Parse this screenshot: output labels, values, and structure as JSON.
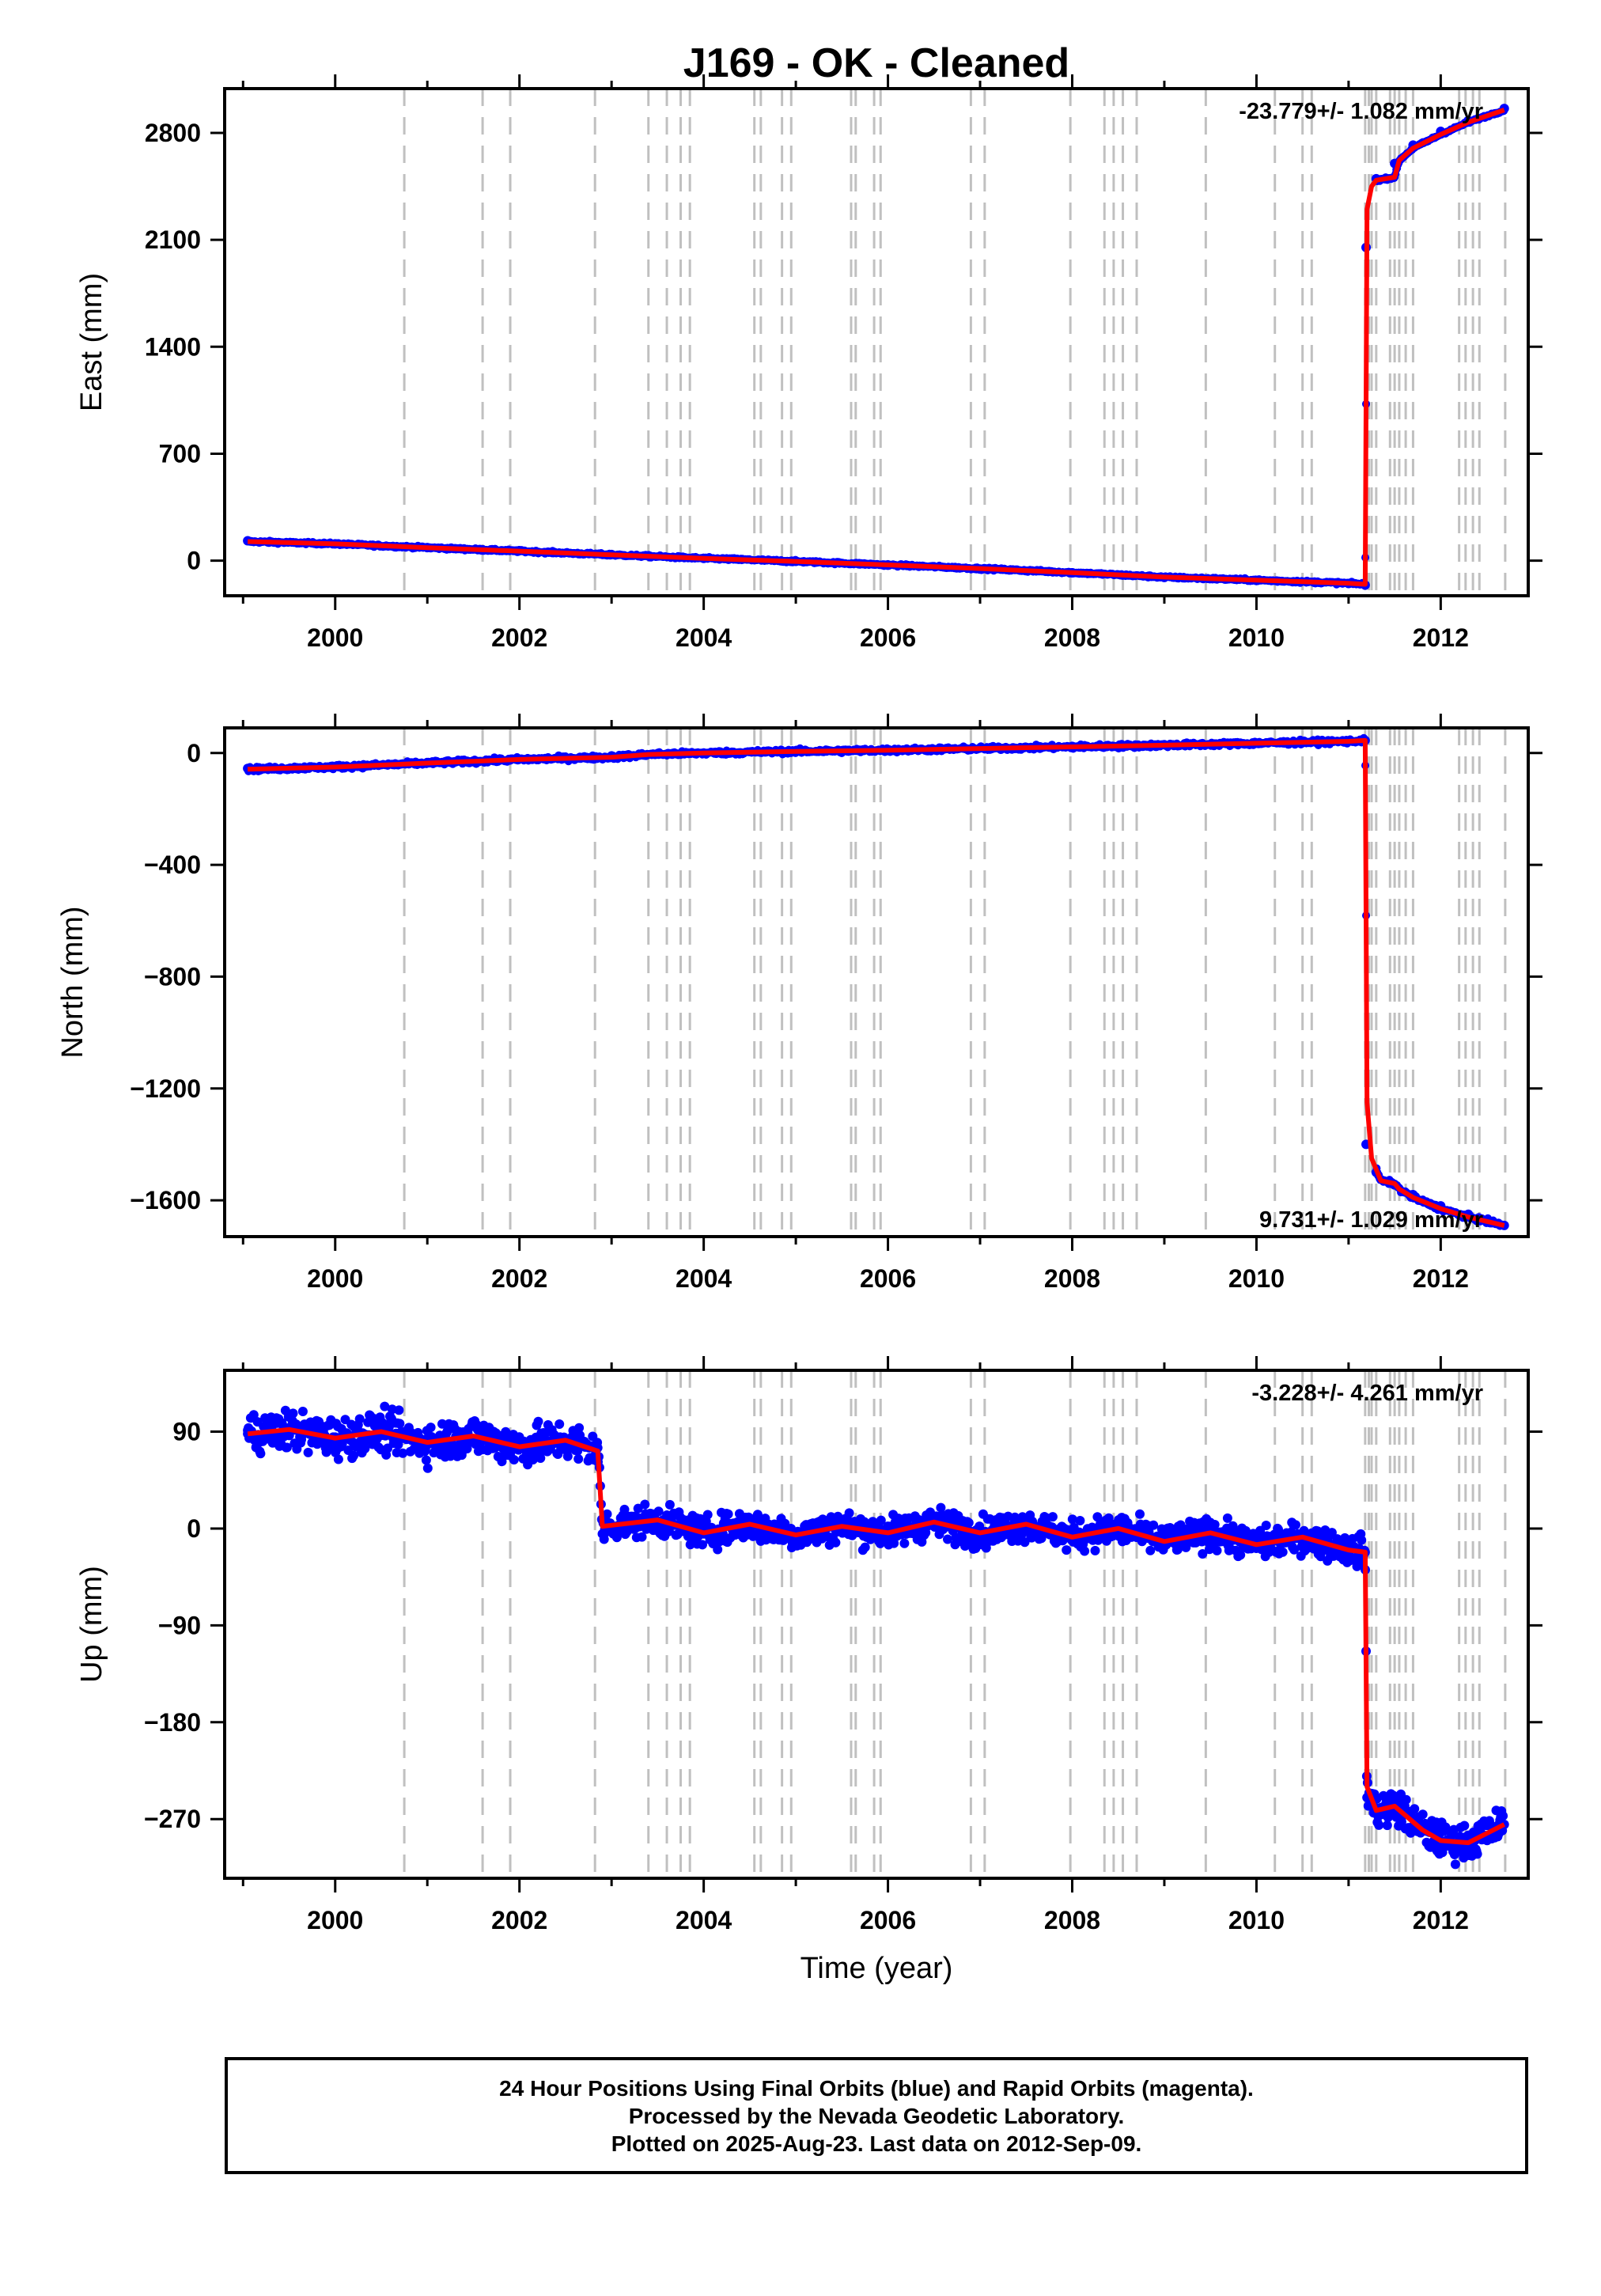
{
  "title": "J169  - OK - Cleaned",
  "footer": {
    "line1": "24 Hour Positions Using Final Orbits (blue) and Rapid Orbits (magenta).",
    "line2": "Processed by the Nevada Geodetic Laboratory.",
    "line3": "Plotted on 2025-Aug-23. Last data on 2012-Sep-09."
  },
  "chart_data": [
    {
      "type": "scatter",
      "ylabel": "East (mm)",
      "xlabel": "",
      "rate_label": "-23.779+/- 1.082 mm/yr",
      "xlim": [
        1998.8,
        2012.95
      ],
      "ylim": [
        -230,
        3090
      ],
      "xticks": [
        2000,
        2002,
        2004,
        2006,
        2008,
        2010,
        2012
      ],
      "yticks": [
        0,
        700,
        1400,
        2100,
        2800
      ],
      "series": [
        {
          "role": "daily positions",
          "color": "#0000ff",
          "x": [
            1999.05,
            2000,
            2001,
            2002,
            2003,
            2004,
            2005,
            2006,
            2007,
            2008,
            2009,
            2010,
            2011.0,
            2011.18,
            2011.19,
            2011.3,
            2011.5,
            2011.7,
            2012.0,
            2012.3,
            2012.69
          ],
          "y": [
            130,
            110,
            85,
            65,
            40,
            15,
            -5,
            -30,
            -55,
            -80,
            -110,
            -130,
            -150,
            -160,
            2050,
            2500,
            2600,
            2720,
            2810,
            2880,
            2960
          ]
        },
        {
          "role": "model fit",
          "color": "#ff0000",
          "x": [
            1999.05,
            2000,
            2001,
            2002,
            2003,
            2004,
            2005,
            2006,
            2007,
            2008,
            2009,
            2010,
            2011.0,
            2011.18,
            2011.2,
            2011.25,
            2011.3,
            2011.5,
            2011.55,
            2011.7,
            2012.0,
            2012.3,
            2012.69
          ],
          "y": [
            125,
            110,
            85,
            62,
            38,
            15,
            -5,
            -28,
            -52,
            -78,
            -108,
            -128,
            -148,
            -155,
            2300,
            2450,
            2490,
            2510,
            2620,
            2700,
            2790,
            2870,
            2950
          ]
        }
      ]
    },
    {
      "type": "scatter",
      "ylabel": "North (mm)",
      "xlabel": "",
      "rate_label": "9.731+/- 1.029 mm/yr",
      "xlim": [
        1998.8,
        2012.95
      ],
      "ylim": [
        -1730,
        90
      ],
      "xticks": [
        2000,
        2002,
        2004,
        2006,
        2008,
        2010,
        2012
      ],
      "yticks": [
        0,
        -400,
        -800,
        -1200,
        -1600
      ],
      "series": [
        {
          "role": "daily positions",
          "color": "#0000ff",
          "x": [
            1999.05,
            2000,
            2001,
            2002,
            2003,
            2004,
            2005,
            2006,
            2007,
            2008,
            2009,
            2010,
            2011.0,
            2011.18,
            2011.19,
            2011.3,
            2011.5,
            2011.7,
            2012.0,
            2012.3,
            2012.69
          ],
          "y": [
            -55,
            -48,
            -35,
            -22,
            -10,
            0,
            8,
            12,
            18,
            24,
            30,
            36,
            42,
            45,
            -1400,
            -1500,
            -1545,
            -1580,
            -1620,
            -1650,
            -1690
          ]
        },
        {
          "role": "model fit",
          "color": "#ff0000",
          "x": [
            1999.05,
            2000,
            2001,
            2002,
            2003,
            2003.4,
            2004,
            2005,
            2006,
            2007,
            2008,
            2009,
            2010,
            2011.0,
            2011.18,
            2011.2,
            2011.25,
            2011.35,
            2011.5,
            2011.55,
            2011.7,
            2012.0,
            2012.3,
            2012.69
          ],
          "y": [
            -58,
            -50,
            -36,
            -23,
            -15,
            -5,
            0,
            6,
            10,
            16,
            22,
            28,
            35,
            42,
            45,
            -1250,
            -1450,
            -1530,
            -1540,
            -1560,
            -1590,
            -1630,
            -1660,
            -1690
          ]
        }
      ]
    },
    {
      "type": "scatter",
      "ylabel": "Up (mm)",
      "xlabel": "Time (year)",
      "rate_label": "-3.228+/- 4.261 mm/yr",
      "xlim": [
        1998.8,
        2012.95
      ],
      "ylim": [
        -325,
        147
      ],
      "xticks": [
        2000,
        2002,
        2004,
        2006,
        2008,
        2010,
        2012
      ],
      "yticks": [
        90,
        0,
        -90,
        -180,
        -270
      ],
      "series": [
        {
          "role": "daily positions",
          "color": "#0000ff",
          "note": "scatter ~±12 mm around the fit before 2011.2, ~±10 mm after",
          "x": [
            1999.05,
            2000,
            2001,
            2002,
            2002.85,
            2002.9,
            2004,
            2005,
            2006,
            2007,
            2008,
            2009,
            2010,
            2011.18,
            2011.2,
            2011.5,
            2011.8,
            2012.0,
            2012.3,
            2012.69
          ],
          "y": [
            88,
            85,
            82,
            78,
            75,
            -5,
            -5,
            -8,
            -2,
            -5,
            -8,
            -12,
            -15,
            -22,
            -250,
            -265,
            -275,
            -290,
            -285,
            -275
          ]
        },
        {
          "role": "model fit",
          "color": "#ff0000",
          "x": [
            1999.05,
            1999.5,
            2000.0,
            2000.5,
            2001.0,
            2001.5,
            2002.0,
            2002.5,
            2002.85,
            2002.9,
            2003.5,
            2004.0,
            2004.5,
            2005.0,
            2005.5,
            2006.0,
            2006.5,
            2007.0,
            2007.5,
            2008.0,
            2008.5,
            2009.0,
            2009.5,
            2010.0,
            2010.5,
            2011.0,
            2011.18,
            2011.2,
            2011.3,
            2011.5,
            2011.8,
            2012.0,
            2012.3,
            2012.69
          ],
          "y": [
            88,
            92,
            84,
            90,
            80,
            86,
            76,
            82,
            72,
            2,
            8,
            -4,
            4,
            -6,
            2,
            -4,
            6,
            -4,
            4,
            -8,
            0,
            -12,
            -4,
            -15,
            -8,
            -20,
            -22,
            -240,
            -262,
            -258,
            -280,
            -290,
            -292,
            -275
          ]
        }
      ]
    }
  ],
  "events": {
    "style": "dashed vertical lines (offset / event epochs)",
    "color": "#c0c0c0",
    "epochs": [
      2000.75,
      2001.6,
      2001.9,
      2002.82,
      2003.4,
      2003.6,
      2003.75,
      2003.85,
      2004.55,
      2004.62,
      2004.85,
      2004.95,
      2005.6,
      2005.65,
      2005.85,
      2005.92,
      2006.9,
      2007.05,
      2007.98,
      2008.35,
      2008.45,
      2008.55,
      2008.7,
      2009.45,
      2010.2,
      2010.5,
      2010.6,
      2011.18,
      2011.22,
      2011.25,
      2011.3,
      2011.45,
      2011.5,
      2011.55,
      2011.62,
      2011.7,
      2012.2,
      2012.27,
      2012.35,
      2012.42,
      2012.7
    ]
  }
}
